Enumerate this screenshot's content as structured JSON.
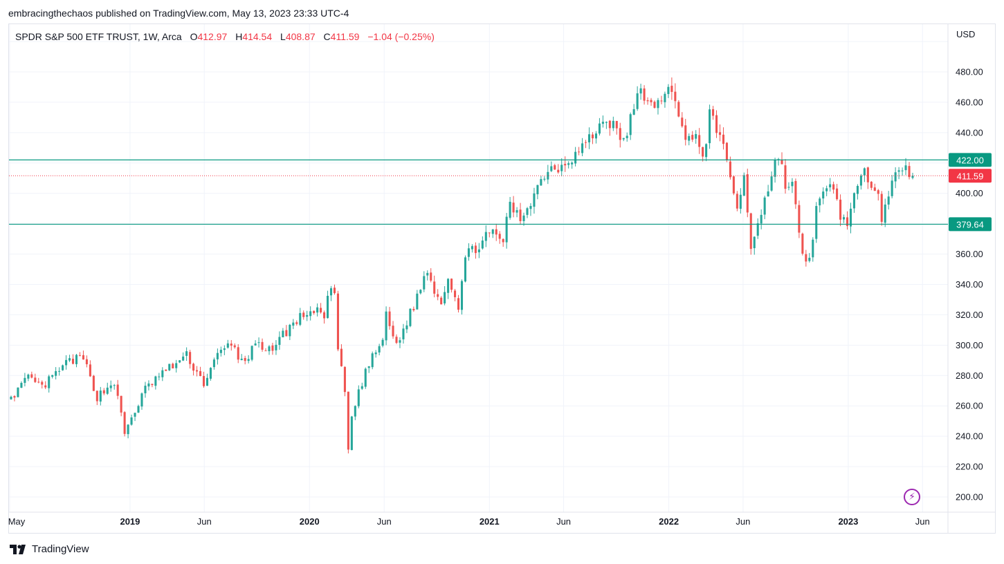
{
  "publisher_line": "embracingthechaos published on TradingView.com, May 13, 2023 23:33 UTC-4",
  "legend": {
    "symbol": "SPDR S&P 500 ETF TRUST, 1W, Arca",
    "o_label": "O",
    "o_value": "412.97",
    "h_label": "H",
    "h_value": "414.54",
    "l_label": "L",
    "l_value": "408.87",
    "c_label": "C",
    "c_value": "411.59",
    "change": "−1.04 (−0.25%)"
  },
  "currency": "USD",
  "brand": "TradingView",
  "colors": {
    "up": "#26a69a",
    "down": "#ef5350",
    "hline": "#089981",
    "last": "#f23645",
    "grid": "#f0f3fa",
    "accent": "#9c27b0"
  },
  "icons": {
    "brand": "tradingview-logo-icon",
    "flash": "lightning-icon"
  },
  "chart_data": {
    "type": "candlestick",
    "timeframe": "1W",
    "yticks": [
      200,
      220,
      240,
      260,
      280,
      300,
      320,
      340,
      360,
      380,
      400,
      420,
      440,
      460,
      480,
      500
    ],
    "ytick_labels": [
      "200.00",
      "220.00",
      "240.00",
      "260.00",
      "280.00",
      "300.00",
      "320.00",
      "340.00",
      "360.00",
      "",
      "400.00",
      "",
      "440.00",
      "460.00",
      "480.00",
      ""
    ],
    "xticks": [
      {
        "label": "May",
        "date": "2018-05-01",
        "bold": false
      },
      {
        "label": "2019",
        "date": "2019-01-01",
        "bold": true
      },
      {
        "label": "Jun",
        "date": "2019-06-01",
        "bold": false
      },
      {
        "label": "2020",
        "date": "2020-01-01",
        "bold": true
      },
      {
        "label": "Jun",
        "date": "2020-06-01",
        "bold": false
      },
      {
        "label": "2021",
        "date": "2021-01-01",
        "bold": true
      },
      {
        "label": "Jun",
        "date": "2021-06-01",
        "bold": false
      },
      {
        "label": "2022",
        "date": "2022-01-01",
        "bold": true
      },
      {
        "label": "Jun",
        "date": "2022-06-01",
        "bold": false
      },
      {
        "label": "2023",
        "date": "2023-01-01",
        "bold": true
      },
      {
        "label": "Jun",
        "date": "2023-06-01",
        "bold": false
      }
    ],
    "horizontal_lines": [
      {
        "value": 422.0,
        "label": "422.00"
      },
      {
        "value": 379.64,
        "label": "379.64"
      }
    ],
    "last_price": {
      "value": 411.59,
      "label": "411.59"
    },
    "anchors": [
      [
        "2018-05-04",
        266
      ],
      [
        "2018-06-08",
        278
      ],
      [
        "2018-07-06",
        272
      ],
      [
        "2018-08-31",
        290
      ],
      [
        "2018-09-28",
        291
      ],
      [
        "2018-10-26",
        266
      ],
      [
        "2018-11-30",
        276
      ],
      [
        "2018-12-21",
        242
      ],
      [
        "2019-01-04",
        252
      ],
      [
        "2019-02-01",
        271
      ],
      [
        "2019-03-01",
        280
      ],
      [
        "2019-04-26",
        293
      ],
      [
        "2019-05-31",
        275
      ],
      [
        "2019-06-28",
        293
      ],
      [
        "2019-07-26",
        302
      ],
      [
        "2019-08-09",
        291
      ],
      [
        "2019-08-30",
        292
      ],
      [
        "2019-09-13",
        301
      ],
      [
        "2019-10-04",
        294
      ],
      [
        "2019-10-25",
        302
      ],
      [
        "2019-11-29",
        314
      ],
      [
        "2019-12-27",
        322
      ],
      [
        "2020-01-31",
        321
      ],
      [
        "2020-02-14",
        337
      ],
      [
        "2020-02-21",
        333
      ],
      [
        "2020-02-28",
        296
      ],
      [
        "2020-03-13",
        270
      ],
      [
        "2020-03-20",
        229
      ],
      [
        "2020-03-27",
        253
      ],
      [
        "2020-04-24",
        283
      ],
      [
        "2020-05-29",
        304
      ],
      [
        "2020-06-05",
        319
      ],
      [
        "2020-06-26",
        300
      ],
      [
        "2020-07-31",
        326
      ],
      [
        "2020-08-28",
        350
      ],
      [
        "2020-09-04",
        342
      ],
      [
        "2020-09-25",
        328
      ],
      [
        "2020-10-09",
        346
      ],
      [
        "2020-10-30",
        326
      ],
      [
        "2020-11-13",
        358
      ],
      [
        "2020-12-31",
        373
      ],
      [
        "2021-01-29",
        370
      ],
      [
        "2021-02-12",
        392
      ],
      [
        "2021-03-05",
        383
      ],
      [
        "2021-04-30",
        417
      ],
      [
        "2021-05-14",
        416
      ],
      [
        "2021-06-25",
        426
      ],
      [
        "2021-07-30",
        438
      ],
      [
        "2021-08-27",
        450
      ],
      [
        "2021-10-01",
        434
      ],
      [
        "2021-11-05",
        469
      ],
      [
        "2021-12-03",
        453
      ],
      [
        "2021-12-31",
        474
      ],
      [
        "2022-01-07",
        466
      ],
      [
        "2022-01-28",
        441
      ],
      [
        "2022-02-25",
        437
      ],
      [
        "2022-03-11",
        420
      ],
      [
        "2022-03-25",
        452
      ],
      [
        "2022-04-01",
        452
      ],
      [
        "2022-05-06",
        412
      ],
      [
        "2022-05-13",
        401
      ],
      [
        "2022-05-20",
        390
      ],
      [
        "2022-06-03",
        410
      ],
      [
        "2022-06-17",
        365
      ],
      [
        "2022-07-01",
        381
      ],
      [
        "2022-07-29",
        411
      ],
      [
        "2022-08-12",
        427
      ],
      [
        "2022-08-26",
        405
      ],
      [
        "2022-09-09",
        406
      ],
      [
        "2022-09-30",
        357
      ],
      [
        "2022-10-14",
        357
      ],
      [
        "2022-10-28",
        389
      ],
      [
        "2022-11-11",
        398
      ],
      [
        "2022-12-02",
        406
      ],
      [
        "2022-12-16",
        383
      ],
      [
        "2022-12-30",
        382
      ],
      [
        "2023-01-13",
        398
      ],
      [
        "2023-02-03",
        412
      ],
      [
        "2023-03-03",
        404
      ],
      [
        "2023-03-10",
        385
      ],
      [
        "2023-03-31",
        409
      ],
      [
        "2023-04-28",
        415
      ],
      [
        "2023-05-12",
        411.59
      ]
    ]
  }
}
